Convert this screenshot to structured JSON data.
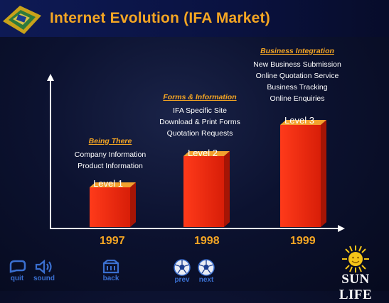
{
  "header": {
    "title": "Internet Evolution (IFA Market)"
  },
  "chart_data": {
    "type": "bar",
    "categories": [
      "1997",
      "1998",
      "1999"
    ],
    "levels": [
      "Level 1",
      "Level 2",
      "Level 3"
    ],
    "values": [
      1,
      2,
      3
    ],
    "groups": [
      {
        "heading": "Being There",
        "items": [
          "Company Information",
          "Product Information"
        ]
      },
      {
        "heading": "Forms & Information",
        "items": [
          "IFA Specific Site",
          "Download & Print Forms",
          "Quotation Requests"
        ]
      },
      {
        "heading": "Business Integration",
        "items": [
          "New Business Submission",
          "Online Quotation Service",
          "Business Tracking",
          "Online Enquiries"
        ]
      }
    ],
    "bar_color": "#ee2a10",
    "bar_top_color": "#f2a12e"
  },
  "nav": {
    "quit": "quit",
    "sound": "sound",
    "back": "back",
    "prev": "prev",
    "next": "next"
  },
  "brand": {
    "name": "SUN LIFE"
  },
  "colors": {
    "accent": "#f5a623",
    "nav_blue": "#3a6fd0"
  }
}
